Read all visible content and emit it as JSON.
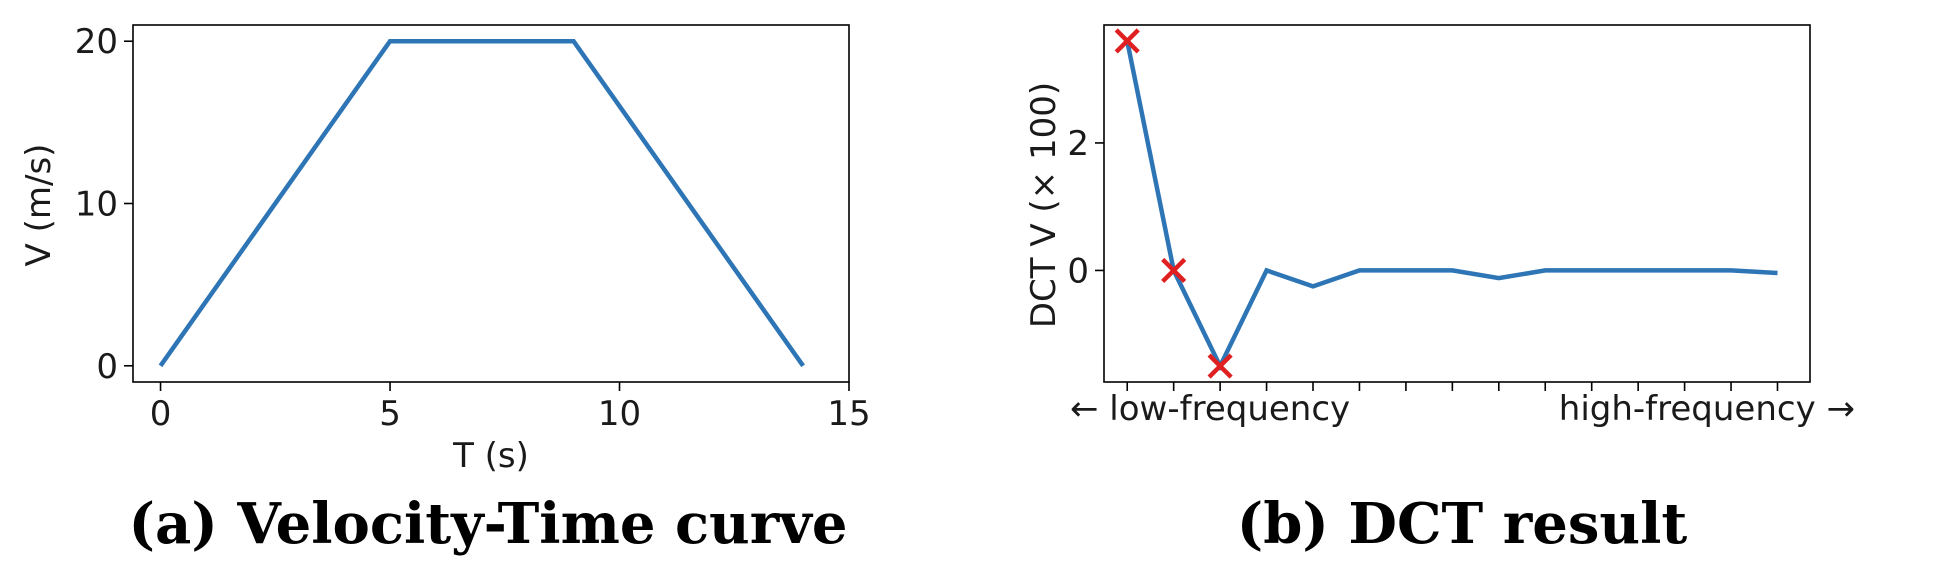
{
  "chart_data": [
    {
      "type": "line",
      "caption": "(a) Velocity-Time curve",
      "xlabel": "T (s)",
      "ylabel": "V (m/s)",
      "xlim": [
        -0.6,
        15
      ],
      "ylim": [
        -1,
        21
      ],
      "xticks": [
        0,
        5,
        10,
        15
      ],
      "yticks": [
        0,
        10,
        20
      ],
      "grid": false,
      "x": [
        0,
        5,
        9,
        14
      ],
      "y": [
        0,
        20,
        20,
        0
      ],
      "line_color": "#2e75b6"
    },
    {
      "type": "line",
      "caption": "(b) DCT result",
      "ylabel": "DCT V (× 100)",
      "xlabel_left": "← low-frequency",
      "xlabel_right": "high-frequency →",
      "xlim": [
        -0.5,
        14.7
      ],
      "ylim": [
        -1.75,
        3.85
      ],
      "yticks": [
        0,
        2
      ],
      "xticks": [
        0,
        1,
        2,
        3,
        4,
        5,
        6,
        7,
        8,
        9,
        10,
        11,
        12,
        13,
        14
      ],
      "grid": false,
      "x": [
        0,
        1,
        2,
        3,
        4,
        5,
        6,
        7,
        8,
        9,
        10,
        11,
        12,
        13,
        14
      ],
      "y": [
        3.6,
        0.0,
        -1.5,
        0.0,
        -0.25,
        0.0,
        0.0,
        0.0,
        -0.12,
        0.0,
        0.0,
        0.0,
        0.0,
        0.0,
        -0.04
      ],
      "highlighted_x": [
        0,
        1,
        2
      ],
      "line_color": "#2e75b6",
      "marker_color": "#e02020"
    }
  ]
}
